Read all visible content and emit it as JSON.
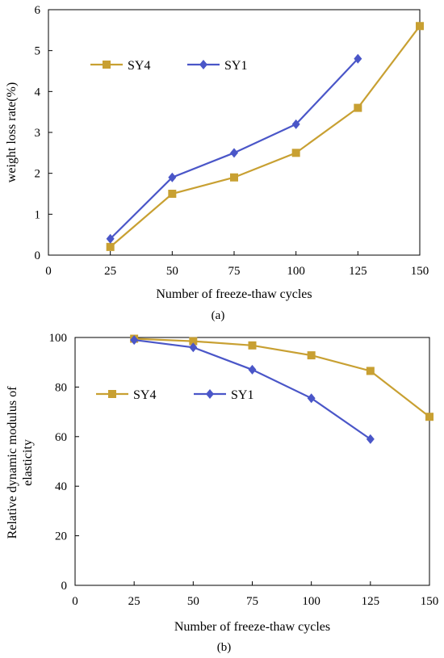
{
  "chart_data": [
    {
      "type": "line",
      "panel_label": "(a)",
      "title": "",
      "xlabel": "Number of freeze-thaw cycles",
      "ylabel": "weight loss rate(%)",
      "xlim": [
        0,
        150
      ],
      "ylim": [
        0,
        6
      ],
      "xticks": [
        0,
        25,
        50,
        75,
        100,
        125,
        150
      ],
      "yticks": [
        0,
        1,
        2,
        3,
        4,
        5,
        6
      ],
      "grid": false,
      "legend_position": "top-left",
      "series": [
        {
          "name": "SY4",
          "color": "#c8a032",
          "marker": "square",
          "x": [
            25,
            50,
            75,
            100,
            125,
            150
          ],
          "y": [
            0.2,
            1.5,
            1.9,
            2.5,
            3.6,
            5.6
          ]
        },
        {
          "name": "SY1",
          "color": "#4a56c8",
          "marker": "diamond",
          "x": [
            25,
            50,
            75,
            100,
            125
          ],
          "y": [
            0.4,
            1.9,
            2.5,
            3.2,
            4.8
          ]
        }
      ]
    },
    {
      "type": "line",
      "panel_label": "(b)",
      "title": "",
      "xlabel": "Number of freeze-thaw cycles",
      "ylabel_lines": [
        "Relative dynamic modulus of",
        "elasticity"
      ],
      "xlim": [
        0,
        150
      ],
      "ylim": [
        0,
        100
      ],
      "xticks": [
        0,
        25,
        50,
        75,
        100,
        125,
        150
      ],
      "yticks": [
        0,
        20,
        40,
        60,
        80,
        100
      ],
      "grid": false,
      "legend_position": "top-left",
      "series": [
        {
          "name": "SY4",
          "color": "#c8a032",
          "marker": "square",
          "x": [
            25,
            50,
            75,
            100,
            125,
            150
          ],
          "y": [
            99.5,
            98.5,
            96.8,
            92.8,
            86.5,
            68
          ]
        },
        {
          "name": "SY1",
          "color": "#4a56c8",
          "marker": "diamond",
          "x": [
            25,
            50,
            75,
            100,
            125
          ],
          "y": [
            99,
            96,
            87,
            75.5,
            59
          ]
        }
      ]
    }
  ]
}
